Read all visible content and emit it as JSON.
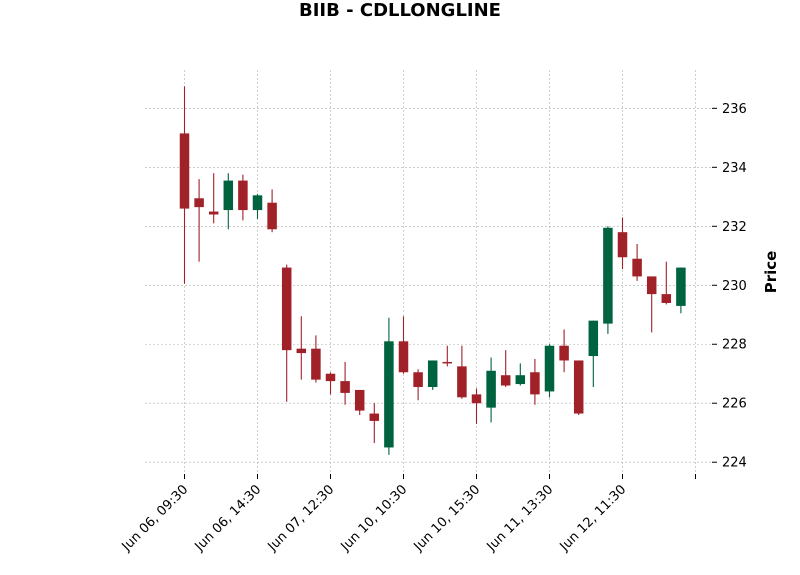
{
  "chart_data": {
    "type": "candlestick",
    "title": "BIIB - CDLLONGLINE",
    "ylabel": "Price",
    "xlabel": "",
    "ylim": [
      223.6,
      237.3
    ],
    "yticks": [
      224,
      226,
      228,
      230,
      232,
      234,
      236
    ],
    "grid": true,
    "colors": {
      "up": "#006340",
      "down": "#a02128"
    },
    "x_tick_positions": [
      0,
      5,
      10,
      15,
      20,
      25,
      30,
      35
    ],
    "x_tick_labels": [
      "Jun 06, 09:30",
      "Jun 06, 14:30",
      "Jun 07, 12:30",
      "Jun 10, 10:30",
      "Jun 10, 15:30",
      "Jun 11, 13:30",
      "Jun 12, 11:30",
      ""
    ],
    "candles": [
      {
        "o": 235.15,
        "h": 236.75,
        "l": 230.05,
        "c": 232.6
      },
      {
        "o": 232.95,
        "h": 233.6,
        "l": 230.8,
        "c": 232.65
      },
      {
        "o": 232.5,
        "h": 233.8,
        "l": 232.1,
        "c": 232.4
      },
      {
        "o": 232.55,
        "h": 233.8,
        "l": 231.9,
        "c": 233.55
      },
      {
        "o": 233.55,
        "h": 233.75,
        "l": 232.2,
        "c": 232.55
      },
      {
        "o": 232.55,
        "h": 233.1,
        "l": 232.25,
        "c": 233.05
      },
      {
        "o": 232.8,
        "h": 233.25,
        "l": 231.8,
        "c": 231.9
      },
      {
        "o": 230.6,
        "h": 230.7,
        "l": 226.05,
        "c": 227.8
      },
      {
        "o": 227.85,
        "h": 228.95,
        "l": 226.8,
        "c": 227.7
      },
      {
        "o": 227.85,
        "h": 228.3,
        "l": 226.7,
        "c": 226.8
      },
      {
        "o": 227.0,
        "h": 227.05,
        "l": 226.3,
        "c": 226.75
      },
      {
        "o": 226.75,
        "h": 227.4,
        "l": 225.95,
        "c": 226.35
      },
      {
        "o": 226.45,
        "h": 226.45,
        "l": 225.6,
        "c": 225.75
      },
      {
        "o": 225.65,
        "h": 226.0,
        "l": 224.65,
        "c": 225.4
      },
      {
        "o": 224.5,
        "h": 228.9,
        "l": 224.25,
        "c": 228.1
      },
      {
        "o": 228.1,
        "h": 228.95,
        "l": 227.0,
        "c": 227.05
      },
      {
        "o": 227.05,
        "h": 227.15,
        "l": 226.1,
        "c": 226.55
      },
      {
        "o": 226.55,
        "h": 227.45,
        "l": 226.45,
        "c": 227.45
      },
      {
        "o": 227.4,
        "h": 227.95,
        "l": 227.25,
        "c": 227.35
      },
      {
        "o": 227.25,
        "h": 227.95,
        "l": 226.15,
        "c": 226.2
      },
      {
        "o": 226.3,
        "h": 226.5,
        "l": 225.3,
        "c": 226.0
      },
      {
        "o": 225.85,
        "h": 227.55,
        "l": 225.35,
        "c": 227.1
      },
      {
        "o": 226.95,
        "h": 227.8,
        "l": 226.55,
        "c": 226.6
      },
      {
        "o": 226.65,
        "h": 227.35,
        "l": 226.6,
        "c": 226.95
      },
      {
        "o": 227.05,
        "h": 227.5,
        "l": 225.95,
        "c": 226.3
      },
      {
        "o": 226.4,
        "h": 228.0,
        "l": 226.2,
        "c": 227.95
      },
      {
        "o": 227.95,
        "h": 228.5,
        "l": 227.05,
        "c": 227.45
      },
      {
        "o": 227.45,
        "h": 227.45,
        "l": 225.6,
        "c": 225.65
      },
      {
        "o": 227.6,
        "h": 228.8,
        "l": 226.55,
        "c": 228.8
      },
      {
        "o": 228.7,
        "h": 232.0,
        "l": 228.35,
        "c": 231.95
      },
      {
        "o": 231.8,
        "h": 232.3,
        "l": 230.55,
        "c": 230.95
      },
      {
        "o": 230.9,
        "h": 231.4,
        "l": 230.15,
        "c": 230.3
      },
      {
        "o": 230.3,
        "h": 230.3,
        "l": 228.4,
        "c": 229.7
      },
      {
        "o": 229.7,
        "h": 230.8,
        "l": 229.35,
        "c": 229.4
      },
      {
        "o": 229.3,
        "h": 230.6,
        "l": 229.05,
        "c": 230.6
      }
    ]
  }
}
